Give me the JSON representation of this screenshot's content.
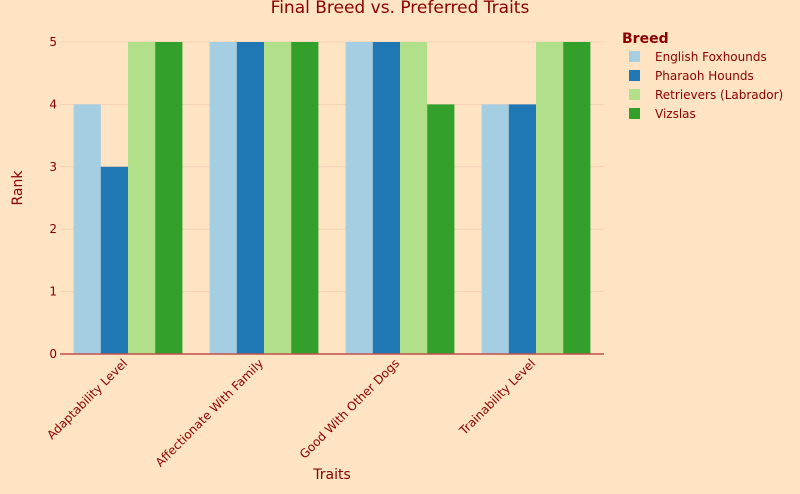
{
  "chart_data": {
    "type": "bar",
    "title": "Final Breed vs. Preferred Traits",
    "xlabel": "Traits",
    "ylabel": "Rank",
    "categories": [
      "Adaptability Level",
      "Affectionate With Family",
      "Good With Other Dogs",
      "Trainability Level"
    ],
    "ylim": [
      0,
      5
    ],
    "yticks": [
      0,
      1,
      2,
      3,
      4,
      5
    ],
    "grid": true,
    "legend_title": "Breed",
    "legend_position": "right",
    "series": [
      {
        "name": "English Foxhounds",
        "color": "#a6cee3",
        "values": [
          4,
          5,
          5,
          4
        ]
      },
      {
        "name": "Pharaoh Hounds",
        "color": "#1f78b4",
        "values": [
          3,
          5,
          5,
          4
        ]
      },
      {
        "name": "Retrievers (Labrador)",
        "color": "#b2df8a",
        "values": [
          5,
          5,
          5,
          5
        ]
      },
      {
        "name": "Vizslas",
        "color": "#33a02c",
        "values": [
          5,
          5,
          4,
          5
        ]
      }
    ]
  }
}
